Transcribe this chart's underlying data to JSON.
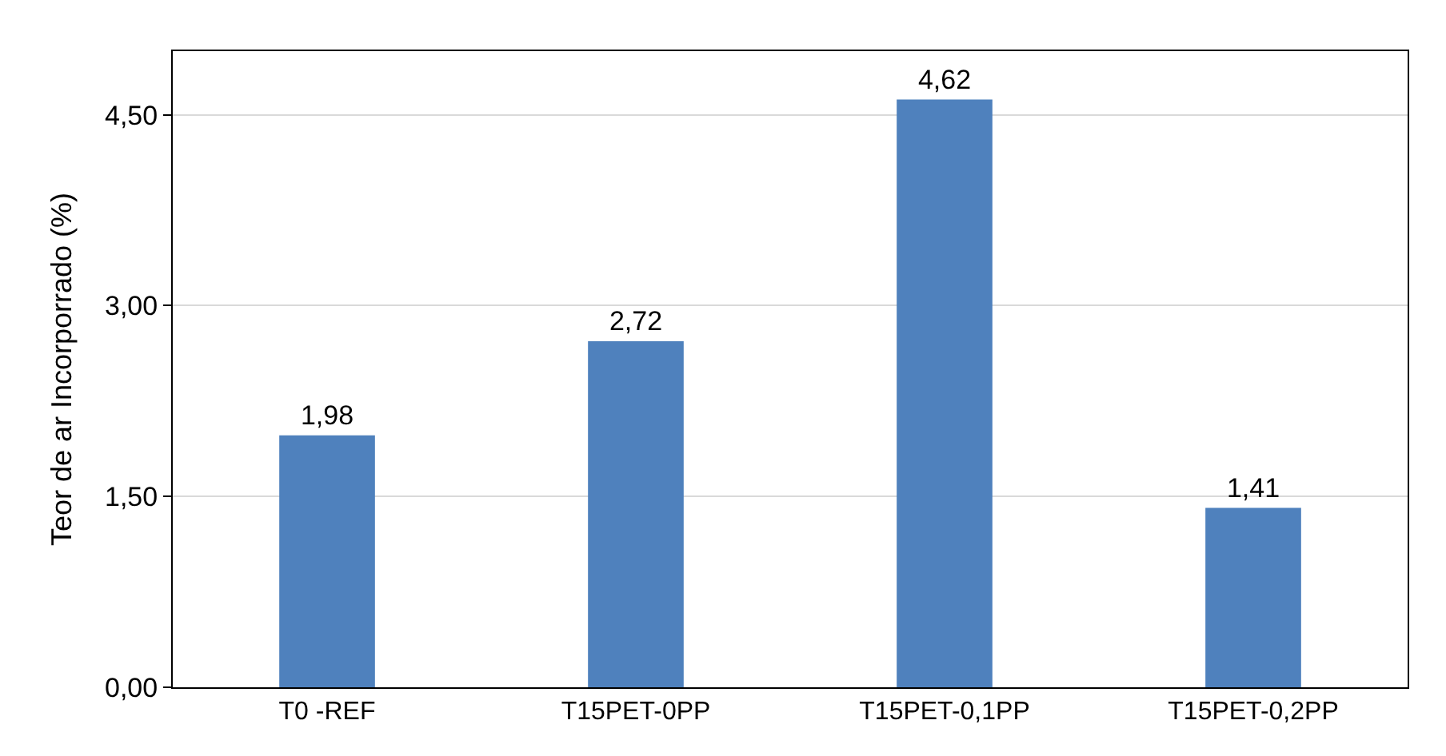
{
  "chart_data": {
    "type": "bar",
    "ylabel": "Teor de ar Incorporrado (%)",
    "categories": [
      "T0 -REF",
      "T15PET-0PP",
      "T15PET-0,1PP",
      "T15PET-0,2PP"
    ],
    "values": [
      1.98,
      2.72,
      4.62,
      1.41
    ],
    "value_labels": [
      "1,98",
      "2,72",
      "4,62",
      "1,41"
    ],
    "color": "#4f81bd",
    "ylim": [
      0,
      5.0
    ],
    "yticks": [
      {
        "value": 0,
        "label": "0,00"
      },
      {
        "value": 1.5,
        "label": "1,50"
      },
      {
        "value": 3.0,
        "label": "3,00"
      },
      {
        "value": 4.5,
        "label": "4,50"
      }
    ],
    "grid": "y",
    "legend": false
  }
}
